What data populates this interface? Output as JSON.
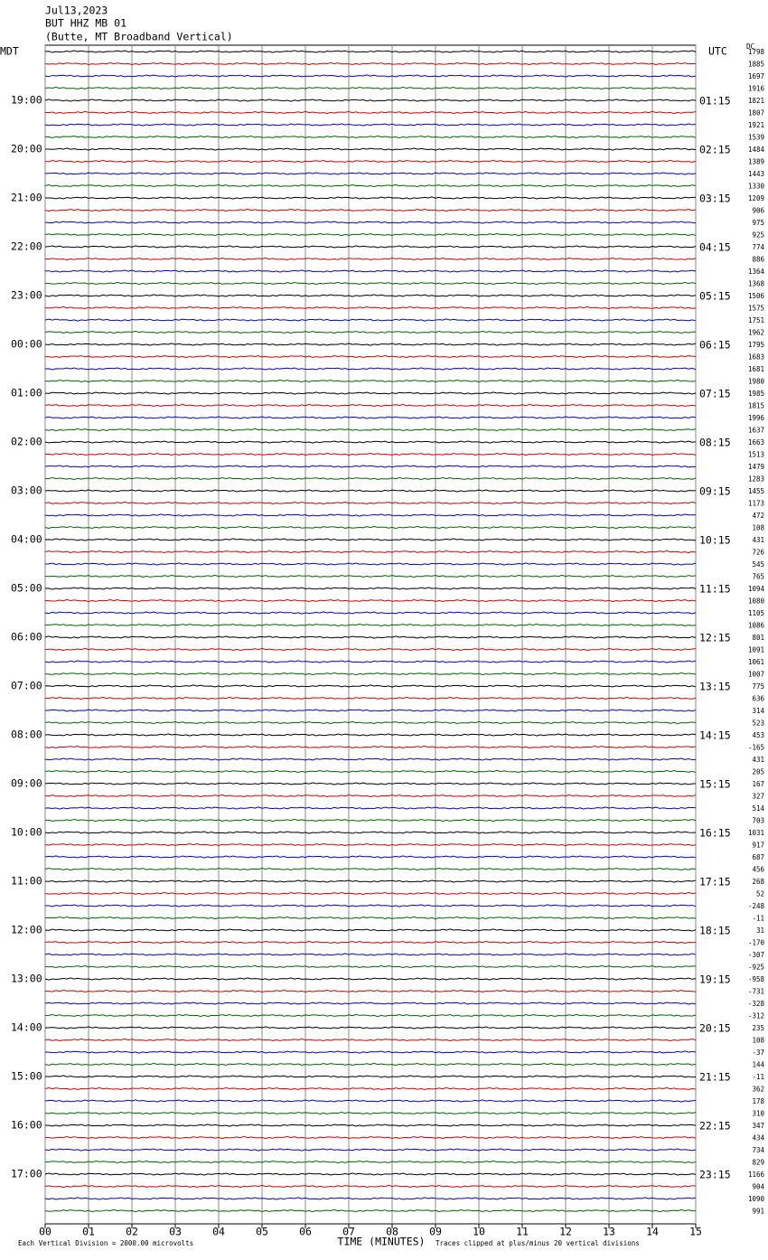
{
  "header": {
    "date": "Jul13,2023",
    "station": "BUT HHZ MB 01",
    "location": "(Butte, MT Broadband Vertical)"
  },
  "left_label": "MDT",
  "right_label": "UTC",
  "dc_label": "DC",
  "left_times": [
    "19:00",
    "20:00",
    "21:00",
    "22:00",
    "23:00",
    "00:00",
    "01:00",
    "02:00",
    "03:00",
    "04:00",
    "05:00",
    "06:00",
    "07:00",
    "08:00",
    "09:00",
    "10:00",
    "11:00",
    "12:00",
    "13:00",
    "14:00",
    "15:00",
    "16:00",
    "17:00"
  ],
  "right_times": [
    "01:15",
    "02:15",
    "03:15",
    "04:15",
    "05:15",
    "06:15",
    "07:15",
    "08:15",
    "09:15",
    "10:15",
    "11:15",
    "12:15",
    "13:15",
    "14:15",
    "15:15",
    "16:15",
    "17:15",
    "18:15",
    "19:15",
    "20:15",
    "21:15",
    "22:15",
    "23:15"
  ],
  "dc_values": [
    1798,
    1885,
    1697,
    1916,
    1821,
    1807,
    1921,
    1539,
    1484,
    1389,
    1443,
    1330,
    1209,
    906,
    975,
    925,
    774,
    886,
    1364,
    1368,
    1506,
    1575,
    1751,
    1962,
    1795,
    1683,
    1681,
    1980,
    1985,
    1815,
    1996,
    1637,
    1663,
    1513,
    1479,
    1283,
    1455,
    1173,
    472,
    108,
    431,
    726,
    545,
    765,
    1094,
    1080,
    1105,
    1086,
    801,
    1091,
    1061,
    1007,
    775,
    636,
    314,
    523,
    453,
    -165,
    431,
    205,
    167,
    327,
    514,
    703,
    1031,
    917,
    687,
    456,
    268,
    52,
    -248,
    -11,
    31,
    -170,
    -307,
    -925,
    -958,
    -731,
    -328,
    -312,
    235,
    108,
    -37,
    144,
    -11,
    362,
    178,
    310,
    347,
    434,
    734,
    829,
    1166,
    904,
    1090,
    991
  ],
  "trace_colors": [
    "#000000",
    "#d40000",
    "#0000d4",
    "#006400"
  ],
  "x_ticks": [
    "00",
    "01",
    "02",
    "03",
    "04",
    "05",
    "06",
    "07",
    "08",
    "09",
    "10",
    "11",
    "12",
    "13",
    "14",
    "15"
  ],
  "x_axis_label": "TIME (MINUTES)",
  "footer_left": "Each Vertical Division = 2000.00 microvolts",
  "footer_right": "Traces clipped at plus/minus 20 vertical divisions"
}
